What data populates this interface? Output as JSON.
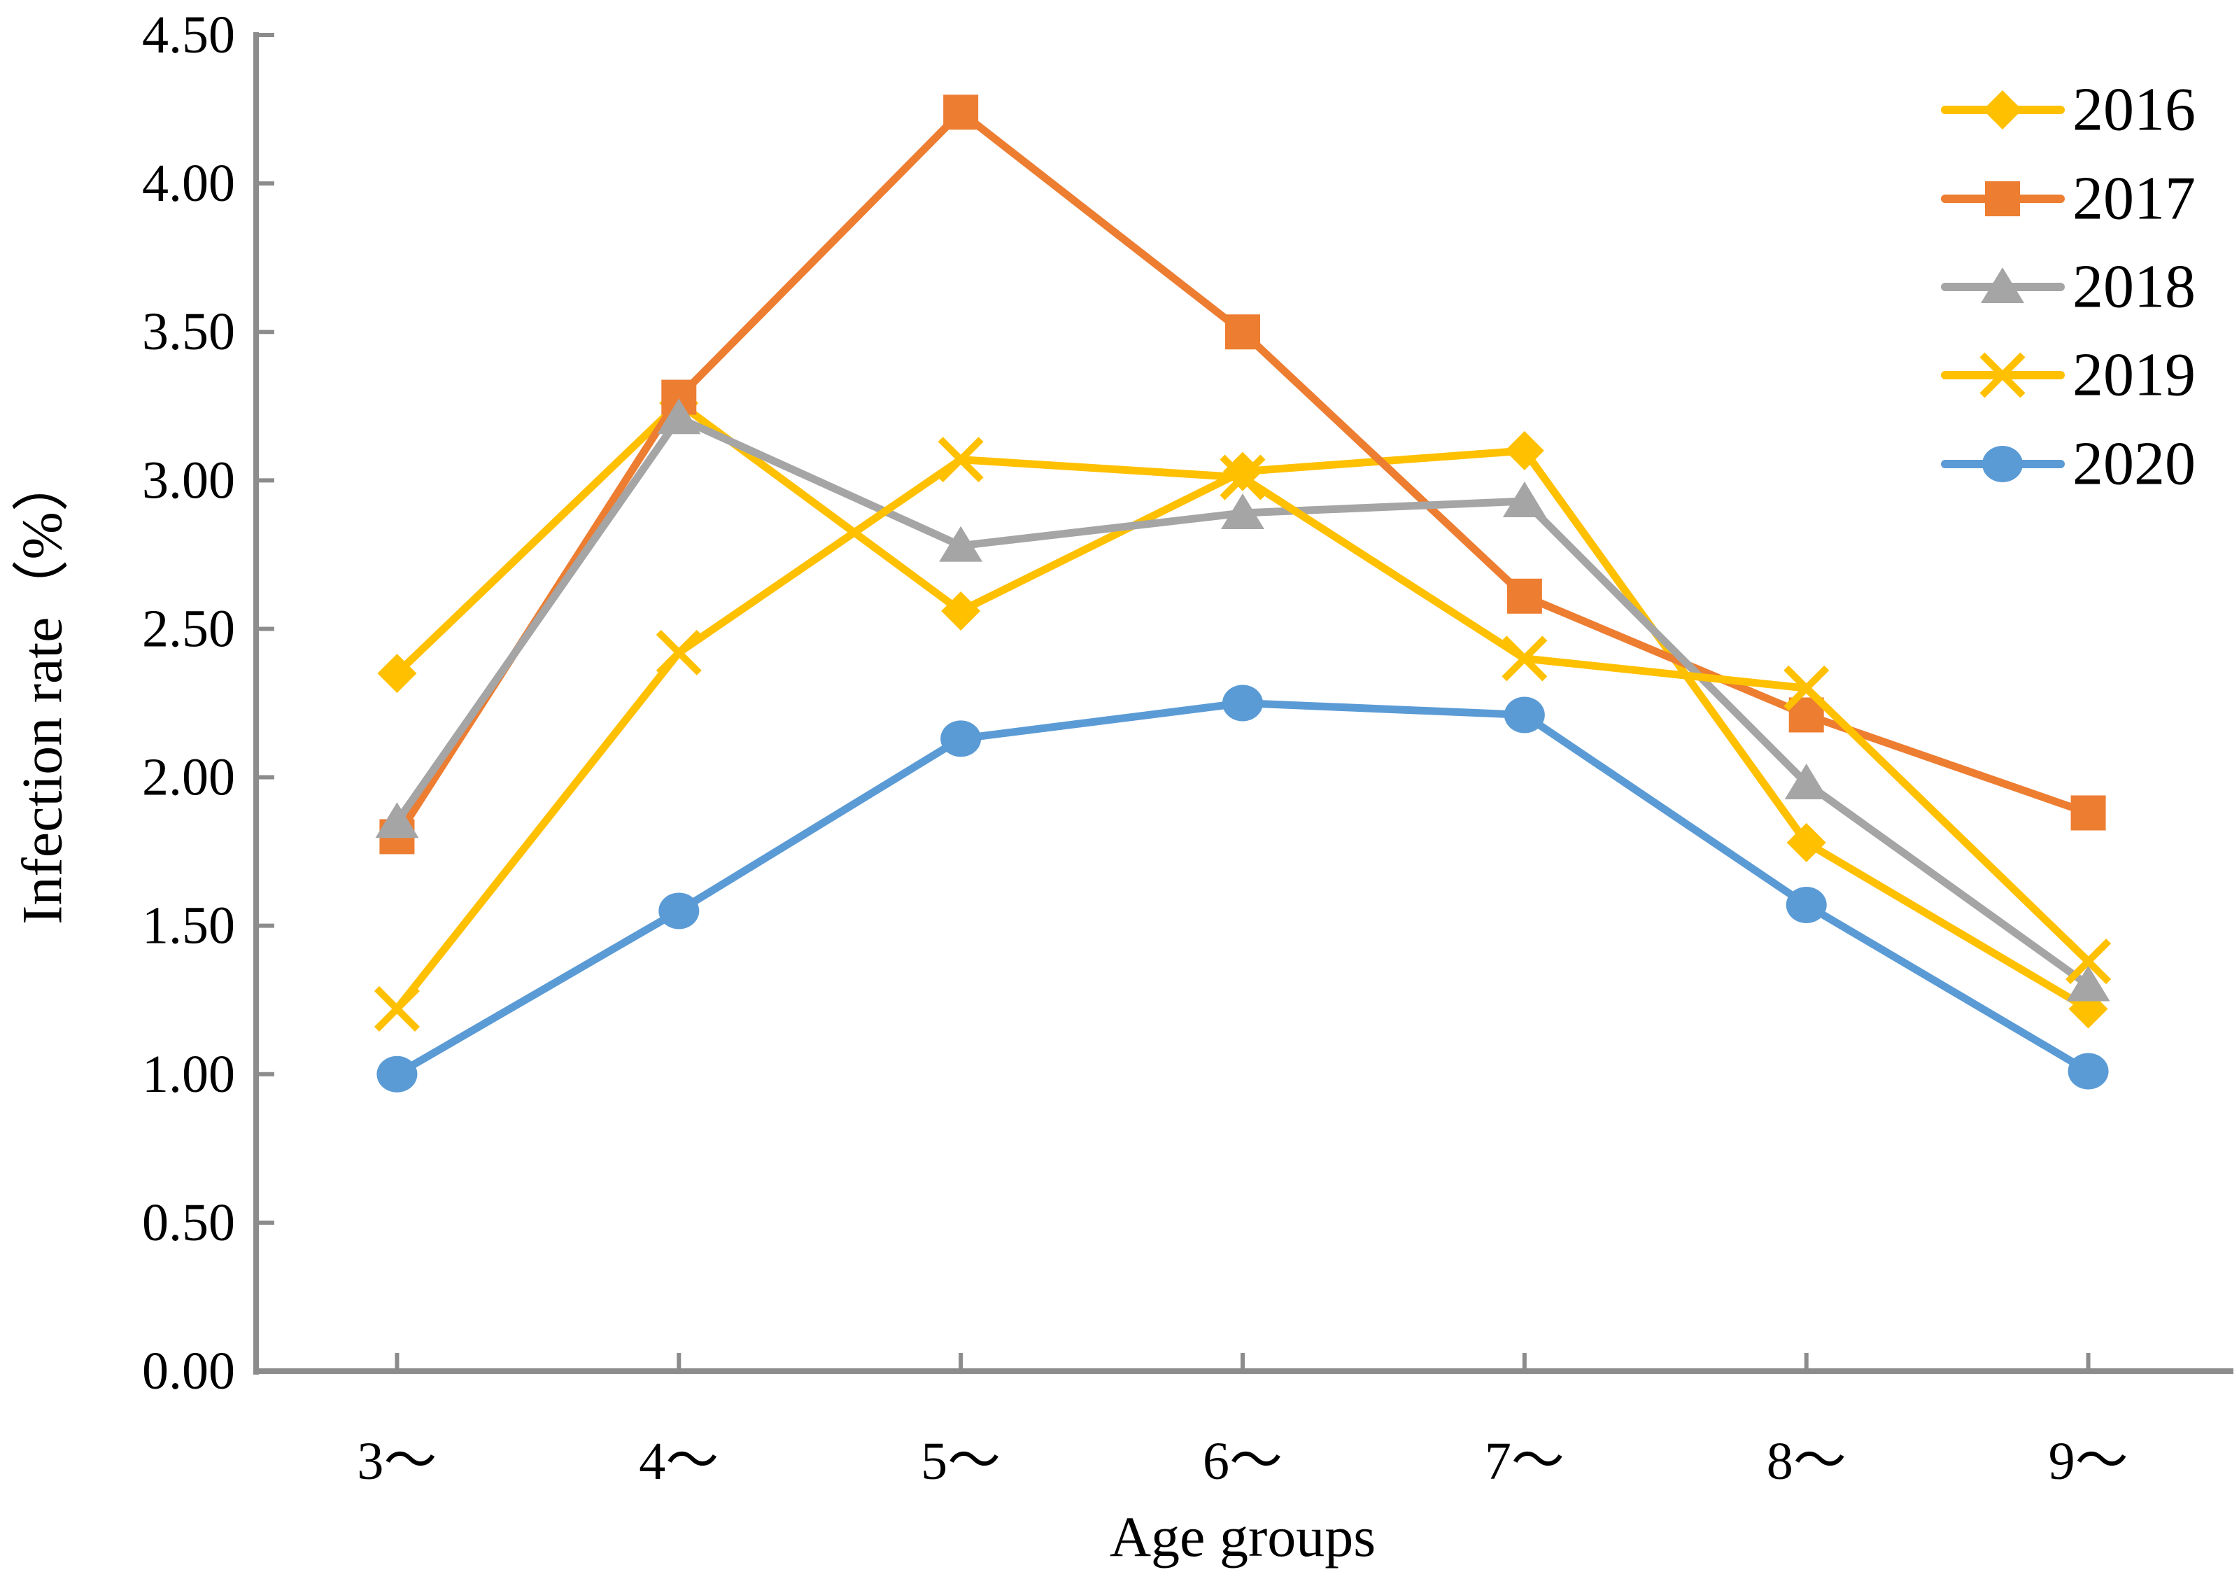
{
  "chart_data": {
    "type": "line",
    "title": "",
    "xlabel": "Age groups",
    "ylabel": "Infection rate（%）",
    "categories": [
      "3～",
      "4～",
      "5～",
      "6～",
      "7～",
      "8～",
      "9～"
    ],
    "series": [
      {
        "name": "2016",
        "marker": "diamond",
        "color": "#FFC000",
        "values": [
          2.35,
          3.26,
          2.56,
          3.03,
          3.1,
          1.78,
          1.22
        ]
      },
      {
        "name": "2017",
        "marker": "square",
        "color": "#ED7D31",
        "values": [
          1.8,
          3.28,
          4.24,
          3.5,
          2.61,
          2.21,
          1.88
        ]
      },
      {
        "name": "2018",
        "marker": "triangle",
        "color": "#A5A5A5",
        "values": [
          1.85,
          3.21,
          2.78,
          2.89,
          2.93,
          1.98,
          1.3
        ]
      },
      {
        "name": "2019",
        "marker": "x",
        "color": "#FFC000",
        "values": [
          1.22,
          2.42,
          3.07,
          3.01,
          2.4,
          2.3,
          1.38
        ]
      },
      {
        "name": "2020",
        "marker": "circle",
        "color": "#5B9BD5",
        "values": [
          1.0,
          1.55,
          2.13,
          2.25,
          2.21,
          1.57,
          1.01
        ]
      }
    ],
    "ylim": [
      0,
      4.5
    ],
    "y_ticks": [
      "0.00",
      "0.50",
      "1.00",
      "1.50",
      "2.00",
      "2.50",
      "3.00",
      "3.50",
      "4.00",
      "4.50"
    ],
    "y_tick_step": 0.5,
    "grid": false,
    "legend_position": "top-right",
    "axis_color": "#8C8C8C",
    "text_color": "#000000",
    "background": "#FFFFFF"
  }
}
